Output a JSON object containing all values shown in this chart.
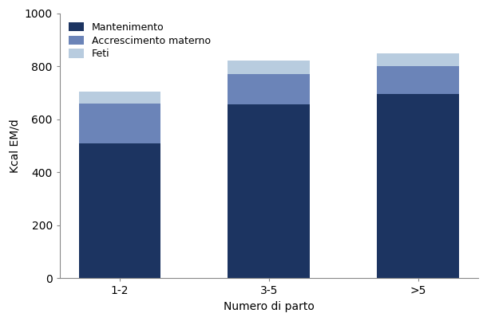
{
  "categories": [
    "1-2",
    "3-5",
    ">5"
  ],
  "mantenimento": [
    510,
    655,
    695
  ],
  "accrescimento": [
    150,
    115,
    105
  ],
  "feti": [
    45,
    50,
    50
  ],
  "colors": {
    "mantenimento": "#1C3461",
    "accrescimento": "#6B84B8",
    "feti": "#B8CCDF"
  },
  "ylabel": "Kcal EM/d",
  "xlabel": "Numero di parto",
  "ylim": [
    0,
    1000
  ],
  "yticks": [
    0,
    200,
    400,
    600,
    800,
    1000
  ],
  "legend_labels": [
    "Mantenimento",
    "Accrescimento materno",
    "Feti"
  ],
  "bar_width": 0.55,
  "background_color": "#ffffff"
}
